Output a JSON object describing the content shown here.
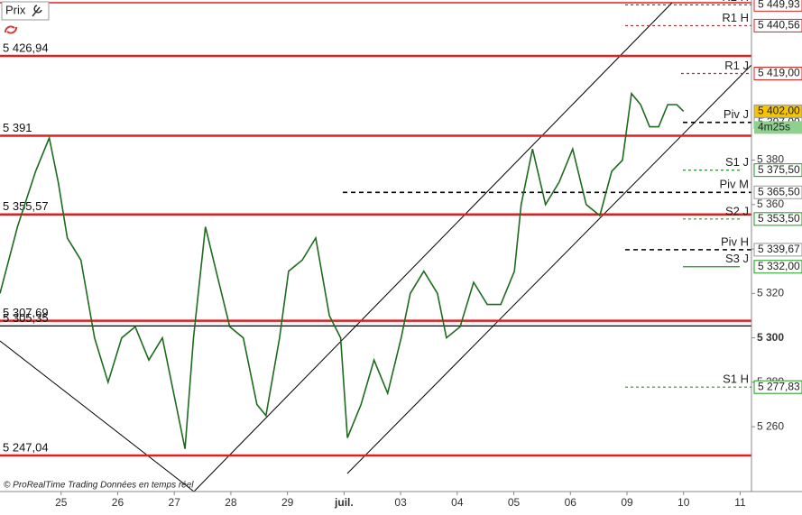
{
  "chart_data": {
    "type": "line",
    "title": "Prix",
    "footer": "© ProRealTime Trading  Données en temps réel",
    "x": [
      -1.08,
      -0.77,
      -0.45,
      -0.21,
      -0.05,
      0.11,
      0.35,
      0.59,
      0.83,
      1.07,
      1.31,
      1.55,
      1.79,
      2.03,
      2.19,
      2.34,
      2.55,
      2.74,
      2.98,
      3.22,
      3.46,
      3.62,
      3.86,
      4.02,
      4.26,
      4.5,
      4.74,
      4.94,
      5.06,
      5.3,
      5.53,
      5.77,
      6.01,
      6.17,
      6.41,
      6.65,
      6.81,
      7.05,
      7.29,
      7.53,
      7.77,
      8.01,
      8.13,
      8.33,
      8.56,
      8.8,
      9.04,
      9.28,
      9.52,
      9.73,
      9.92,
      10.08,
      10.24,
      10.4,
      10.56,
      10.72,
      10.88,
      11.0
    ],
    "series": [
      {
        "name": "Prix",
        "color": "#1e6b1e",
        "values": [
          5320,
          5350,
          5375,
          5390,
          5370,
          5345,
          5335,
          5300,
          5280,
          5300,
          5305,
          5290,
          5300,
          5270,
          5250,
          5300,
          5350,
          5330,
          5305,
          5300,
          5270,
          5265,
          5300,
          5330,
          5335,
          5345,
          5310,
          5300,
          5255,
          5270,
          5290,
          5275,
          5300,
          5320,
          5330,
          5320,
          5300,
          5305,
          5325,
          5315,
          5315,
          5330,
          5360,
          5385,
          5360,
          5370,
          5385,
          5360,
          5355,
          5375,
          5380,
          5410,
          5405,
          5395,
          5395,
          5405,
          5405,
          5402
        ]
      }
    ],
    "xlim": [
      -1.08,
      12.2
    ],
    "xticks": [
      {
        "value": 0,
        "label": "25"
      },
      {
        "value": 1,
        "label": "26"
      },
      {
        "value": 2,
        "label": "27"
      },
      {
        "value": 3,
        "label": "28"
      },
      {
        "value": 4,
        "label": "29"
      },
      {
        "value": 5,
        "label": "juil."
      },
      {
        "value": 6,
        "label": "03"
      },
      {
        "value": 7,
        "label": "04"
      },
      {
        "value": 8,
        "label": "05"
      },
      {
        "value": 9,
        "label": "06"
      },
      {
        "value": 10,
        "label": "09"
      },
      {
        "value": 11,
        "label": "10"
      },
      {
        "value": 12,
        "label": "11"
      }
    ],
    "ylim": [
      5230.8,
      5452.1
    ],
    "yticks": [
      {
        "value": 5260,
        "label": "5 260"
      },
      {
        "value": 5280,
        "label": "5 280"
      },
      {
        "value": 5300,
        "label": "5 300"
      },
      {
        "value": 5320,
        "label": "5 320"
      },
      {
        "value": 5340,
        "label": "5 340"
      },
      {
        "value": 5360,
        "label": "5 360"
      },
      {
        "value": 5380,
        "label": "5 380"
      }
    ],
    "levels": [
      {
        "value": 5426.94,
        "label": "5 426,94"
      },
      {
        "value": 5391,
        "label": "5 391"
      },
      {
        "value": 5355.57,
        "label": "5 355,57"
      },
      {
        "value": 5307.69,
        "label": "5 307,69"
      },
      {
        "value": 5305.35,
        "label": "5 305,35",
        "color": "#000000"
      },
      {
        "value": 5247.04,
        "label": "5 247,04"
      }
    ],
    "pivots": [
      {
        "name": "R2 H",
        "value": 5449.93,
        "label": "5 449,93",
        "color": "#e02020"
      },
      {
        "name": "R1 H",
        "value": 5440.56,
        "label": "5 440,56",
        "color": "#e02020"
      },
      {
        "name": "R1 J",
        "value": 5419,
        "label": "5 419,00",
        "color": "#e02020"
      },
      {
        "name": "Piv J",
        "value": 5397,
        "label": "5 397,00",
        "color": "#000000"
      },
      {
        "name": "S1 J",
        "value": 5375.5,
        "label": "5 375,50",
        "color": "#1a9a1a"
      },
      {
        "name": "Piv M",
        "value": 5365.5,
        "label": "5 365,50",
        "color": "#000000"
      },
      {
        "name": "S2 J",
        "value": 5353.5,
        "label": "5 353,50",
        "color": "#1a9a1a"
      },
      {
        "name": "Piv H",
        "value": 5339.67,
        "label": "5 339,67",
        "color": "#000000"
      },
      {
        "name": "S3 J",
        "value": 5332,
        "label": "5 332,00",
        "color": "#1a9a1a"
      },
      {
        "name": "S1 H",
        "value": 5277.83,
        "label": "5 277,83",
        "color": "#1a9a1a"
      }
    ],
    "last_price": {
      "value": 5402,
      "label": "5 402,00"
    },
    "countdown": "4m25s"
  }
}
